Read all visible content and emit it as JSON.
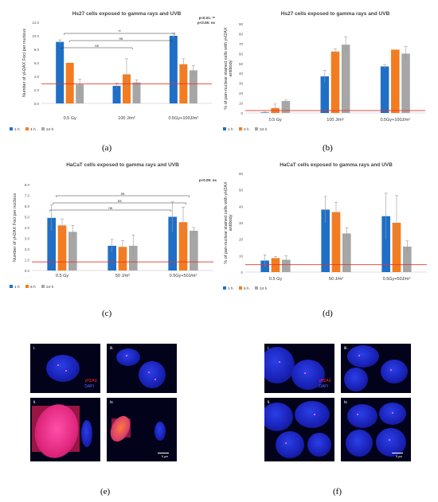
{
  "chart_data": [
    {
      "panel": "a",
      "type": "bar",
      "title": "Hs27 cells exposed to gamma rays and UVB",
      "ylabel": "Number of γH2AX Foci per nucleus",
      "ylim": [
        0,
        12
      ],
      "yticks": [
        "0.0",
        "2.0",
        "4.0",
        "6.0",
        "8.0",
        "10.0",
        "12.0"
      ],
      "categories": [
        "0.5 Gy",
        "100 J/m²",
        "0.5Gy+100J/m²"
      ],
      "series": [
        {
          "name": "1 h",
          "color": "#1f6fc7",
          "values": [
            9.1,
            2.6,
            10.0
          ],
          "errors": [
            0.3,
            0.4,
            0.4
          ]
        },
        {
          "name": "4 h",
          "color": "#f47c20",
          "values": [
            6.0,
            4.3,
            5.8
          ],
          "errors": [
            0.0,
            2.3,
            0.8
          ]
        },
        {
          "name": "24 h",
          "color": "#a6a6a6",
          "values": [
            2.8,
            3.1,
            4.9
          ],
          "errors": [
            0.8,
            0.4,
            0.7
          ]
        }
      ],
      "reference_line": {
        "value": 2.9,
        "color": "#e0342b"
      },
      "significance": [
        "**",
        "ns",
        "ns"
      ],
      "stats_note": [
        "p<0.01: **",
        "p<0.05: ns"
      ]
    },
    {
      "panel": "b",
      "type": "bar",
      "title": "Hs27 cells exposed to gamma rays and UVB",
      "ylabel": "% of pan-nuclear stained cells with γH2AX antibody",
      "ylim": [
        0,
        90
      ],
      "yticks": [
        "0",
        "10",
        "20",
        "30",
        "40",
        "50",
        "60",
        "70",
        "80",
        "90"
      ],
      "categories": [
        "0.5 Gy",
        "100 J/m²",
        "0.5Gy+100J/m²"
      ],
      "series": [
        {
          "name": "1 h",
          "color": "#1f6fc7",
          "values": [
            0.5,
            37,
            47
          ],
          "errors": [
            0.5,
            6,
            2
          ]
        },
        {
          "name": "4 h",
          "color": "#f47c20",
          "values": [
            5,
            62,
            64
          ],
          "errors": [
            4,
            3,
            0
          ]
        },
        {
          "name": "24 h",
          "color": "#a6a6a6",
          "values": [
            12,
            69,
            60
          ],
          "errors": [
            1,
            8,
            7
          ]
        }
      ],
      "reference_line": {
        "value": 2.5,
        "color": "#e0342b"
      }
    },
    {
      "panel": "c",
      "type": "bar",
      "title": "HaCaT cells exposed to gamma rays and UVB",
      "ylabel": "Number of γH2AX Foci per nucleus",
      "ylim": [
        0,
        8
      ],
      "yticks": [
        "0.0",
        "1.0",
        "2.0",
        "3.0",
        "4.0",
        "5.0",
        "6.0",
        "7.0",
        "8.0"
      ],
      "categories": [
        "0.5 Gy",
        "50 J/m²",
        "0.5Gy+50J/m²"
      ],
      "series": [
        {
          "name": "1 h",
          "color": "#1f6fc7",
          "values": [
            4.9,
            2.3,
            5.0
          ],
          "errors": [
            1.2,
            0.6,
            1.4
          ]
        },
        {
          "name": "6 h",
          "color": "#f47c20",
          "values": [
            4.2,
            2.2,
            4.5
          ],
          "errors": [
            0.6,
            0.6,
            1.4
          ]
        },
        {
          "name": "24 h",
          "color": "#a6a6a6",
          "values": [
            3.6,
            2.3,
            3.7
          ],
          "errors": [
            0.6,
            1.0,
            0.3
          ]
        }
      ],
      "reference_line": {
        "value": 0.8,
        "color": "#e0342b"
      },
      "significance": [
        "ns",
        "ns",
        "ns"
      ],
      "stats_note": [
        "p<0.05: ns"
      ]
    },
    {
      "panel": "d",
      "type": "bar",
      "title": "HaCaT cells exposed to gamma rays and UVB",
      "ylabel": "% of pan-nuclear stained cells with γH2AX antibody",
      "ylim": [
        0,
        60
      ],
      "yticks": [
        "0",
        "10",
        "20",
        "30",
        "40",
        "50",
        "60"
      ],
      "categories": [
        "0.5 Gy",
        "50 J/m²",
        "0.5Gy+50J/m²"
      ],
      "series": [
        {
          "name": "1 h",
          "color": "#1f6fc7",
          "values": [
            7,
            38,
            34
          ],
          "errors": [
            3.5,
            8,
            14
          ]
        },
        {
          "name": "6 h",
          "color": "#f47c20",
          "values": [
            8.5,
            36.5,
            30
          ],
          "errors": [
            1,
            6,
            16.5
          ]
        },
        {
          "name": "24 h",
          "color": "#a6a6a6",
          "values": [
            7.5,
            23.5,
            15.5
          ],
          "errors": [
            2.5,
            3.5,
            3.5
          ]
        }
      ],
      "reference_line": {
        "value": 4.5,
        "color": "#e0342b"
      }
    }
  ],
  "captions": {
    "a": "(a)",
    "b": "(b)",
    "c": "(c)",
    "d": "(d)",
    "e": "(e)",
    "f": "(f)"
  },
  "micrographs": {
    "e": {
      "labels": [
        "i.",
        "iii.",
        "ii.",
        "iv."
      ],
      "legend_red": "γH2AX",
      "legend_blue": "DAPI",
      "scale": "5 μm"
    },
    "f": {
      "labels": [
        "i.",
        "iii.",
        "ii.",
        "iv."
      ],
      "legend_red": "γH2AX",
      "legend_blue": "DAPI",
      "scale": "5 μm"
    }
  }
}
